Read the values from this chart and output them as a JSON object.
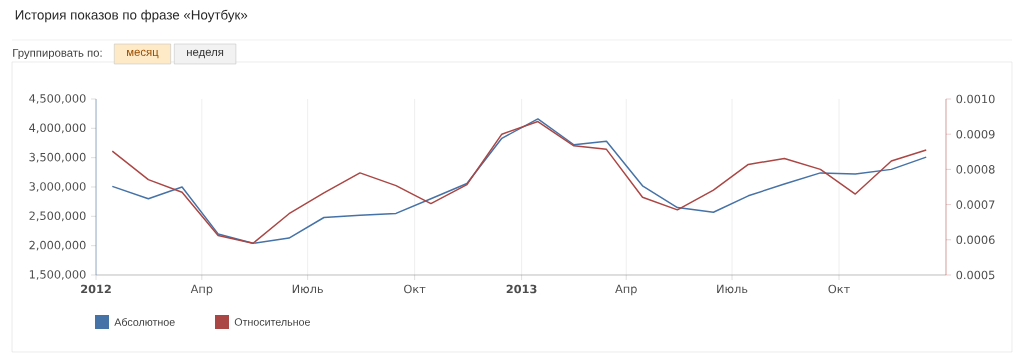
{
  "chart_data": {
    "type": "line",
    "title": "История показов по фразе «Ноутбук»",
    "annotations": [
      "Группировать по:",
      "месяц",
      "неделя"
    ],
    "x": [
      "2012-01-15",
      "2012-02-15",
      "2012-03-15",
      "2012-04-15",
      "2012-05-15",
      "2012-06-15",
      "2012-07-15",
      "2012-08-15",
      "2012-09-15",
      "2012-10-15",
      "2012-11-15",
      "2012-12-15",
      "2013-01-15",
      "2013-02-15",
      "2013-03-15",
      "2013-04-15",
      "2013-05-15",
      "2013-06-15",
      "2013-07-15",
      "2013-08-15",
      "2013-09-15",
      "2013-10-15",
      "2013-11-15",
      "2013-12-15"
    ],
    "series": [
      {
        "name": "Абсолютное",
        "color": "#4572a7",
        "values": [
          3010000,
          2800000,
          3000000,
          2200000,
          2040000,
          2130000,
          2480000,
          2520000,
          2550000,
          2800000,
          3060000,
          3830000,
          4160000,
          3720000,
          3780000,
          3020000,
          2650000,
          2570000,
          2850000,
          3050000,
          3240000,
          3220000,
          3300000,
          3510000
        ]
      },
      {
        "name": "Относительное",
        "color": "#aa4643",
        "axis": "y2",
        "values": [
          0.000852,
          0.000771,
          0.000735,
          0.000612,
          0.00059,
          0.000674,
          0.000733,
          0.00079,
          0.000754,
          0.000703,
          0.000757,
          0.0009,
          0.000936,
          0.000867,
          0.000857,
          0.000721,
          0.000685,
          0.000741,
          0.000814,
          0.000831,
          0.0008,
          0.00073,
          0.000824,
          0.000855
        ]
      }
    ],
    "xlim": [
      "2012-01-01",
      "2014-01-01"
    ],
    "xticks": [
      {
        "value": "2012-01-01",
        "label": "2012"
      },
      {
        "value": "2012-04-01",
        "label": "Апр"
      },
      {
        "value": "2012-07-01",
        "label": "Июль"
      },
      {
        "value": "2012-10-01",
        "label": "Окт"
      },
      {
        "value": "2013-01-01",
        "label": "2013"
      },
      {
        "value": "2013-04-01",
        "label": "Апр"
      },
      {
        "value": "2013-07-01",
        "label": "Июль"
      },
      {
        "value": "2013-10-01",
        "label": "Окт"
      }
    ],
    "ylim": [
      1500000,
      4500000
    ],
    "yticks": [
      {
        "value": 1500000,
        "label": "1,500,000"
      },
      {
        "value": 2000000,
        "label": "2,000,000"
      },
      {
        "value": 2500000,
        "label": "2,500,000"
      },
      {
        "value": 3000000,
        "label": "3,000,000"
      },
      {
        "value": 3500000,
        "label": "3,500,000"
      },
      {
        "value": 4000000,
        "label": "4,000,000"
      },
      {
        "value": 4500000,
        "label": "4,500,000"
      }
    ],
    "y2lim": [
      0.0005,
      0.001
    ],
    "y2ticks": [
      {
        "value": 0.0005,
        "label": "0.0005"
      },
      {
        "value": 0.0006,
        "label": "0.0006"
      },
      {
        "value": 0.0007,
        "label": "0.0007"
      },
      {
        "value": 0.0008,
        "label": "0.0008"
      },
      {
        "value": 0.0009,
        "label": "0.0009"
      },
      {
        "value": 0.001,
        "label": "0.0010"
      }
    ],
    "grid": "x",
    "legend": "bottom"
  }
}
